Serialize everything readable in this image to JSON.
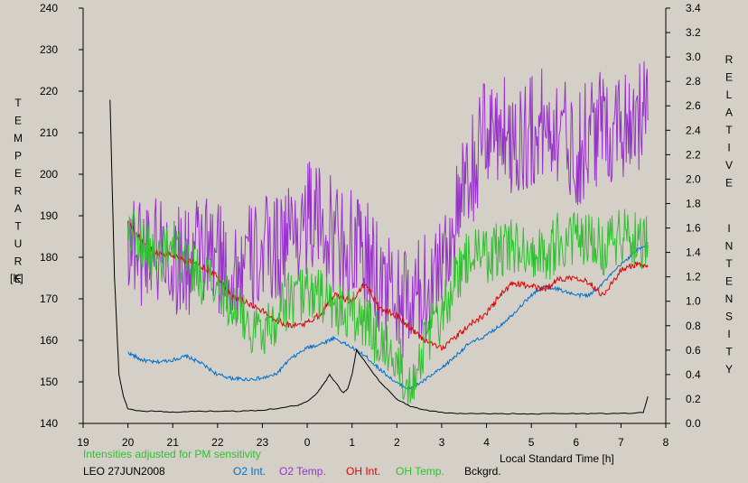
{
  "chart_data": {
    "type": "line",
    "left_axis_title": "TEMPERATURE",
    "left_axis_unit": "[K]",
    "right_axis_title": "RELATIVE INTENSITY",
    "xlabel": "Local Standard Time [h]",
    "note": "Intensities adjusted for PM sensitivity",
    "site_date": "LEO 27JUN2008",
    "xlim": [
      19,
      32
    ],
    "x_ticks": [
      19,
      20,
      21,
      22,
      23,
      24,
      25,
      26,
      27,
      28,
      29,
      30,
      31,
      32
    ],
    "x_tick_labels": [
      "19",
      "20",
      "21",
      "22",
      "23",
      "0",
      "1",
      "2",
      "3",
      "4",
      "5",
      "6",
      "7",
      "8"
    ],
    "ylim_left": [
      140,
      240
    ],
    "y_ticks_left": [
      "140",
      "150",
      "160",
      "170",
      "180",
      "190",
      "200",
      "210",
      "220",
      "230",
      "240"
    ],
    "ylim_right": [
      0,
      3.4
    ],
    "y_ticks_right": [
      "0.0",
      "0.2",
      "0.4",
      "0.6",
      "0.8",
      "1.0",
      "1.2",
      "1.4",
      "1.6",
      "1.8",
      "2.0",
      "2.2",
      "2.4",
      "2.6",
      "2.8",
      "3.0",
      "3.2",
      "3.4"
    ],
    "grid": false,
    "series": [
      {
        "name": "O2 Int.",
        "color": "#0070d0",
        "axis": "right",
        "x": [
          20.0,
          20.3,
          20.6,
          21.0,
          21.3,
          21.6,
          22.0,
          22.3,
          22.6,
          23.0,
          23.3,
          23.6,
          24.0,
          24.3,
          24.6,
          25.0,
          25.3,
          25.6,
          26.0,
          26.3,
          26.6,
          27.0,
          27.3,
          27.6,
          28.0,
          28.3,
          28.6,
          29.0,
          29.3,
          29.6,
          30.0,
          30.3,
          30.6,
          31.0,
          31.3,
          31.6
        ],
        "y": [
          0.58,
          0.52,
          0.5,
          0.52,
          0.55,
          0.5,
          0.4,
          0.37,
          0.36,
          0.37,
          0.4,
          0.52,
          0.62,
          0.65,
          0.7,
          0.62,
          0.55,
          0.45,
          0.33,
          0.28,
          0.35,
          0.45,
          0.55,
          0.65,
          0.72,
          0.8,
          0.9,
          1.05,
          1.12,
          1.1,
          1.05,
          1.05,
          1.15,
          1.3,
          1.4,
          1.48
        ]
      },
      {
        "name": "O2 Temp.",
        "color": "#9932cc",
        "axis": "left",
        "x": [
          20.0,
          20.3,
          20.6,
          21.0,
          21.3,
          21.6,
          22.0,
          22.3,
          22.6,
          23.0,
          23.3,
          23.6,
          24.0,
          24.3,
          24.6,
          25.0,
          25.3,
          25.6,
          26.0,
          26.3,
          26.6,
          27.0,
          27.3,
          27.6,
          28.0,
          28.3,
          28.6,
          29.0,
          29.3,
          29.6,
          30.0,
          30.3,
          30.6,
          31.0,
          31.3,
          31.6
        ],
        "y": [
          185,
          182,
          183,
          180,
          178,
          182,
          180,
          176,
          178,
          181,
          182,
          186,
          190,
          188,
          185,
          182,
          180,
          175,
          170,
          168,
          172,
          180,
          188,
          198,
          210,
          212,
          208,
          210,
          212,
          212,
          205,
          210,
          212,
          212,
          215,
          213
        ]
      },
      {
        "name": "OH Int.",
        "color": "#e00000",
        "axis": "right",
        "x": [
          20.0,
          20.3,
          20.6,
          21.0,
          21.3,
          21.6,
          22.0,
          22.3,
          22.6,
          23.0,
          23.3,
          23.6,
          24.0,
          24.3,
          24.6,
          25.0,
          25.3,
          25.6,
          26.0,
          26.3,
          26.6,
          27.0,
          27.3,
          27.6,
          28.0,
          28.3,
          28.6,
          29.0,
          29.3,
          29.6,
          30.0,
          30.3,
          30.6,
          31.0,
          31.3,
          31.6
        ],
        "y": [
          1.65,
          1.5,
          1.4,
          1.38,
          1.33,
          1.3,
          1.2,
          1.05,
          1.0,
          0.92,
          0.85,
          0.8,
          0.82,
          0.9,
          1.05,
          1.0,
          1.15,
          0.95,
          0.88,
          0.78,
          0.68,
          0.62,
          0.7,
          0.8,
          0.9,
          1.05,
          1.15,
          1.12,
          1.1,
          1.18,
          1.2,
          1.15,
          1.05,
          1.25,
          1.3,
          1.28
        ]
      },
      {
        "name": "OH Temp.",
        "color": "#30c030",
        "axis": "left",
        "x": [
          20.0,
          20.3,
          20.6,
          21.0,
          21.3,
          21.6,
          22.0,
          22.3,
          22.6,
          23.0,
          23.3,
          23.6,
          24.0,
          24.3,
          24.6,
          25.0,
          25.3,
          25.6,
          26.0,
          26.3,
          26.6,
          27.0,
          27.3,
          27.6,
          28.0,
          28.3,
          28.6,
          29.0,
          29.3,
          29.6,
          30.0,
          30.3,
          30.6,
          31.0,
          31.3,
          31.6
        ],
        "y": [
          188,
          183,
          180,
          182,
          178,
          176,
          172,
          170,
          165,
          162,
          166,
          170,
          172,
          170,
          168,
          166,
          164,
          160,
          155,
          150,
          158,
          166,
          174,
          180,
          180,
          182,
          183,
          182,
          180,
          184,
          184,
          186,
          182,
          186,
          185,
          183
        ]
      },
      {
        "name": "Bckgrd.",
        "color": "#000000",
        "axis": "right",
        "x": [
          19.6,
          19.7,
          19.8,
          19.9,
          20.0,
          20.3,
          20.6,
          21.0,
          21.5,
          22.0,
          22.5,
          23.0,
          23.5,
          23.8,
          24.0,
          24.2,
          24.4,
          24.5,
          24.6,
          24.8,
          24.9,
          25.0,
          25.1,
          25.2,
          25.4,
          25.6,
          26.0,
          26.3,
          26.6,
          27.0,
          27.5,
          28.0,
          28.5,
          29.0,
          29.5,
          30.0,
          30.5,
          31.0,
          31.5,
          31.6
        ],
        "y": [
          2.65,
          1.2,
          0.4,
          0.22,
          0.12,
          0.1,
          0.1,
          0.09,
          0.1,
          0.1,
          0.1,
          0.11,
          0.13,
          0.15,
          0.18,
          0.24,
          0.34,
          0.4,
          0.35,
          0.25,
          0.28,
          0.4,
          0.6,
          0.55,
          0.45,
          0.35,
          0.2,
          0.14,
          0.11,
          0.09,
          0.08,
          0.08,
          0.08,
          0.08,
          0.08,
          0.08,
          0.08,
          0.08,
          0.09,
          0.22
        ]
      }
    ]
  },
  "theme": {
    "background": "#d4d0c8",
    "axis_color": "#000000",
    "note_color": "#30c030"
  }
}
